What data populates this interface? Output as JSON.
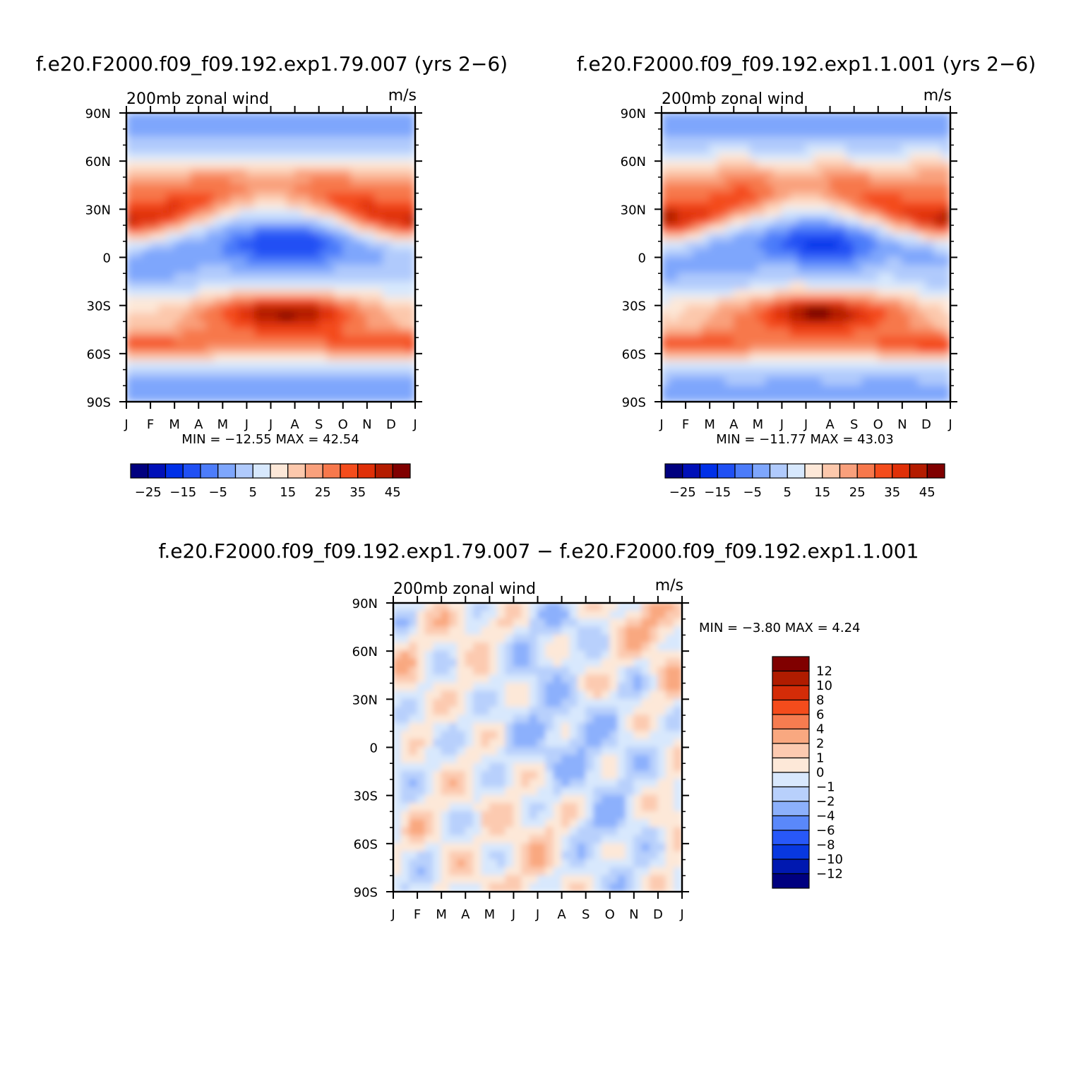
{
  "colors": {
    "abs_palette": [
      "#00007f",
      "#0010b8",
      "#0030e8",
      "#2050f4",
      "#4c7cfa",
      "#7ea6fc",
      "#b0cafc",
      "#d7e8fd",
      "#fde8d8",
      "#fcc8ac",
      "#f9a07c",
      "#f7784c",
      "#f44c1c",
      "#e03008",
      "#b41c00",
      "#800000"
    ],
    "diff_palette": [
      "#00007f",
      "#0018b0",
      "#0838e0",
      "#2858f8",
      "#5a88fa",
      "#8cb0fc",
      "#b8d0fc",
      "#d8e8fd",
      "#fde8d8",
      "#fccab0",
      "#f9a880",
      "#f67c50",
      "#f44c1c",
      "#d42c08",
      "#b01c00",
      "#800000"
    ]
  },
  "chart_data": [
    {
      "type": "heatmap",
      "id": "panel_a",
      "title": "f.e20.F2000.f09_f09.192.exp1.79.007 (yrs 2−6)",
      "subtitle_left": "200mb zonal wind",
      "subtitle_right": "m/s",
      "x_tick_labels": [
        "J",
        "F",
        "M",
        "A",
        "M",
        "J",
        "J",
        "A",
        "S",
        "O",
        "N",
        "D",
        "J"
      ],
      "y_tick_labels": [
        "90N",
        "60N",
        "30N",
        "0",
        "30S",
        "60S",
        "90S"
      ],
      "xlim": [
        0,
        12
      ],
      "ylim": [
        -90,
        90
      ],
      "stats_text": "MIN = −12.55 MAX =   42.54",
      "colorbar_levels": [
        -30,
        -25,
        -20,
        -15,
        -10,
        -5,
        0,
        5,
        10,
        15,
        20,
        25,
        30,
        35,
        40,
        45
      ],
      "colorbar_labels": [
        "−25",
        "−15",
        "−5",
        "5",
        "15",
        "25",
        "35",
        "45"
      ]
    },
    {
      "type": "heatmap",
      "id": "panel_b",
      "title": "f.e20.F2000.f09_f09.192.exp1.1.001 (yrs 2−6)",
      "subtitle_left": "200mb zonal wind",
      "subtitle_right": "m/s",
      "x_tick_labels": [
        "J",
        "F",
        "M",
        "A",
        "M",
        "J",
        "J",
        "A",
        "S",
        "O",
        "N",
        "D",
        "J"
      ],
      "y_tick_labels": [
        "90N",
        "60N",
        "30N",
        "0",
        "30S",
        "60S",
        "90S"
      ],
      "xlim": [
        0,
        12
      ],
      "ylim": [
        -90,
        90
      ],
      "stats_text": "MIN = −11.77 MAX =   43.03",
      "colorbar_levels": [
        -30,
        -25,
        -20,
        -15,
        -10,
        -5,
        0,
        5,
        10,
        15,
        20,
        25,
        30,
        35,
        40,
        45
      ],
      "colorbar_labels": [
        "−25",
        "−15",
        "−5",
        "5",
        "15",
        "25",
        "35",
        "45"
      ]
    },
    {
      "type": "heatmap",
      "id": "panel_diff",
      "title": "f.e20.F2000.f09_f09.192.exp1.79.007 − f.e20.F2000.f09_f09.192.exp1.1.001",
      "subtitle_left": "200mb zonal wind",
      "subtitle_right": "m/s",
      "x_tick_labels": [
        "J",
        "F",
        "M",
        "A",
        "M",
        "J",
        "J",
        "A",
        "S",
        "O",
        "N",
        "D",
        "J"
      ],
      "y_tick_labels": [
        "90N",
        "60N",
        "30N",
        "0",
        "30S",
        "60S",
        "90S"
      ],
      "xlim": [
        0,
        12
      ],
      "ylim": [
        -90,
        90
      ],
      "stats_text": "MIN =   −3.80 MAX =     4.24",
      "colorbar_levels": [
        -12,
        -10,
        -8,
        -6,
        -4,
        -2,
        -1,
        0,
        1,
        2,
        4,
        6,
        8,
        10,
        12
      ],
      "colorbar_labels": [
        "12",
        "10",
        "8",
        "6",
        "4",
        "2",
        "1",
        "0",
        "−1",
        "−2",
        "−4",
        "−6",
        "−8",
        "−10",
        "−12"
      ]
    }
  ]
}
